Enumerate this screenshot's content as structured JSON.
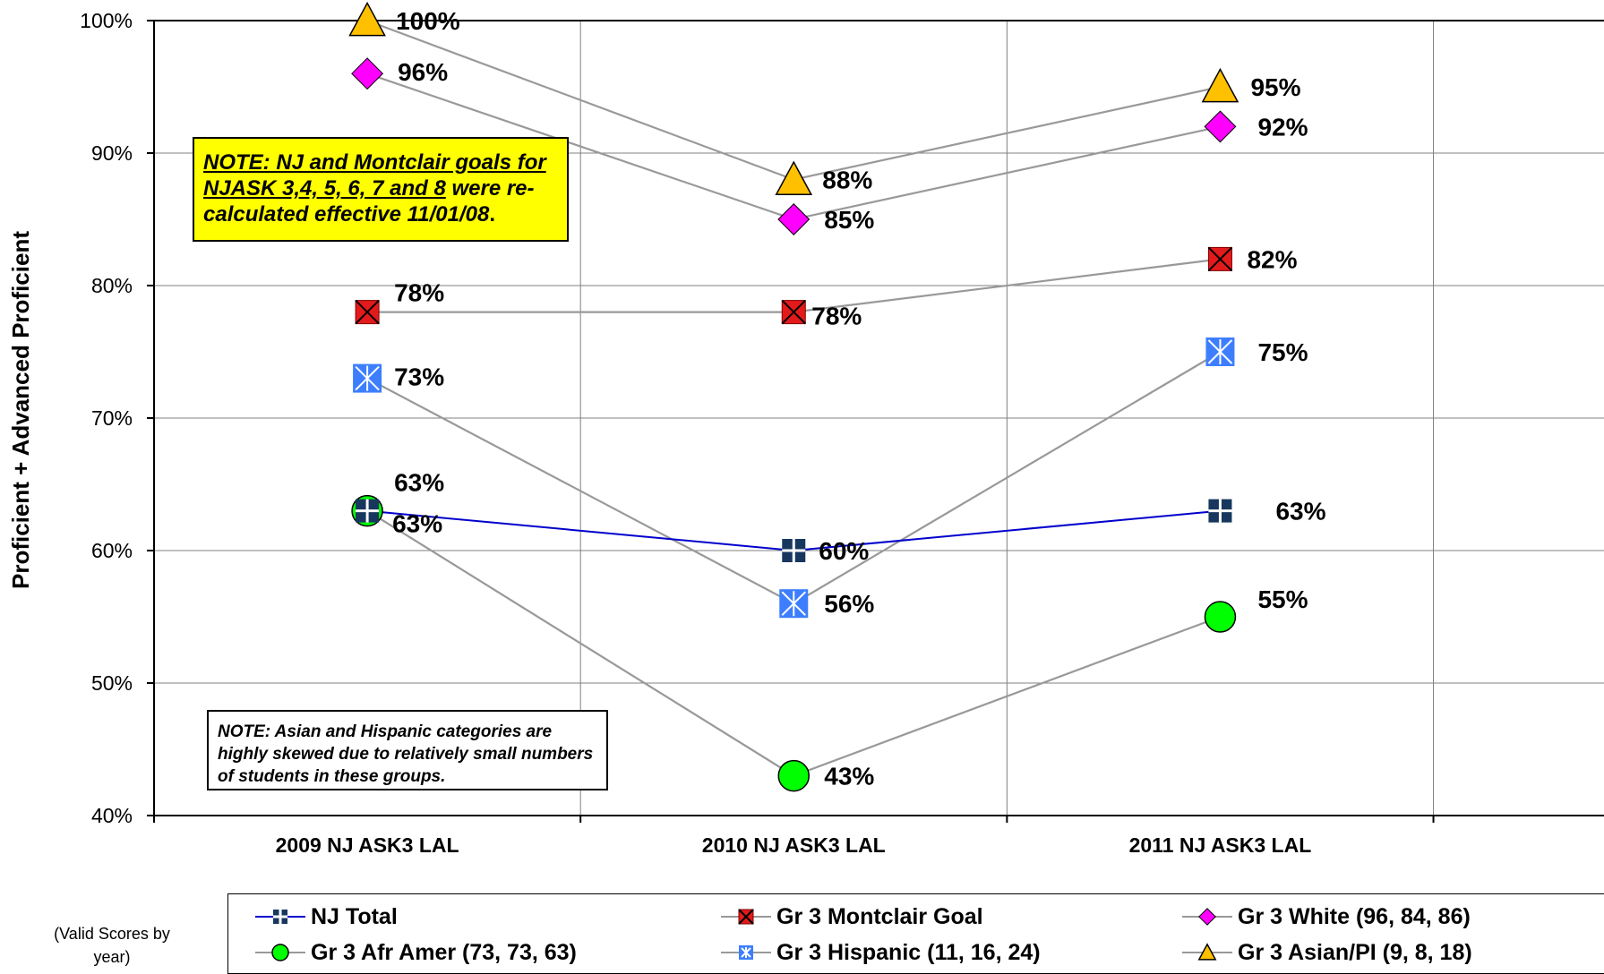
{
  "chart_data": {
    "type": "line",
    "ylabel": "Proficient + Advanced Proficient",
    "ylim": [
      40,
      100
    ],
    "y_ticks": [
      "40%",
      "50%",
      "60%",
      "70%",
      "80%",
      "90%",
      "100%"
    ],
    "categories": [
      "2009 NJ ASK3  LAL",
      "2010 NJ ASK3  LAL",
      "2011 NJ ASK3  LAL"
    ],
    "grid": true,
    "legend_position": "bottom",
    "series": [
      {
        "name": "NJ Total",
        "values": [
          63,
          60,
          63
        ],
        "labels": [
          "63%",
          "60%",
          "63%"
        ],
        "color": "#0000cc",
        "marker": "plus-square",
        "marker_color": "#17375e"
      },
      {
        "name": "Gr 3 Montclair Goal",
        "values": [
          78,
          78,
          82
        ],
        "labels": [
          "78%",
          "78%",
          "82%"
        ],
        "color": "#999999",
        "marker": "x-square",
        "marker_color": "#e31a1c"
      },
      {
        "name": "Gr 3 White (96, 84, 86)",
        "values": [
          96,
          85,
          92
        ],
        "labels": [
          "96%",
          "85%",
          "92%"
        ],
        "color": "#999999",
        "marker": "diamond",
        "marker_color": "#ff00ff"
      },
      {
        "name": "Gr 3 Afr Amer (73, 73, 63)",
        "values": [
          63,
          43,
          55
        ],
        "labels": [
          "63%",
          "43%",
          "55%"
        ],
        "color": "#999999",
        "marker": "circle",
        "marker_color": "#00ff00"
      },
      {
        "name": "Gr 3 Hispanic (11, 16, 24)",
        "values": [
          73,
          56,
          75
        ],
        "labels": [
          "73%",
          "56%",
          "75%"
        ],
        "color": "#999999",
        "marker": "star-square",
        "marker_color": "#3d7eff"
      },
      {
        "name": "Gr 3 Asian/PI (9, 8, 18)",
        "values": [
          100,
          88,
          95
        ],
        "labels": [
          "100%",
          "88%",
          "95%"
        ],
        "color": "#999999",
        "marker": "triangle",
        "marker_color": "#ffc000"
      }
    ]
  },
  "notes": {
    "goal_note_underlined": "NOTE:   NJ and Montclair goals for NJASK 3,4, 5, 6, 7 and 8",
    "goal_note_rest": " were re-calculated effective 11/01/08",
    "goal_note_end": ".",
    "sample_note": "NOTE: Asian and Hispanic categories are highly skewed due to relatively small numbers of students in these groups."
  },
  "legend_side_label": "(Valid Scores by year)"
}
